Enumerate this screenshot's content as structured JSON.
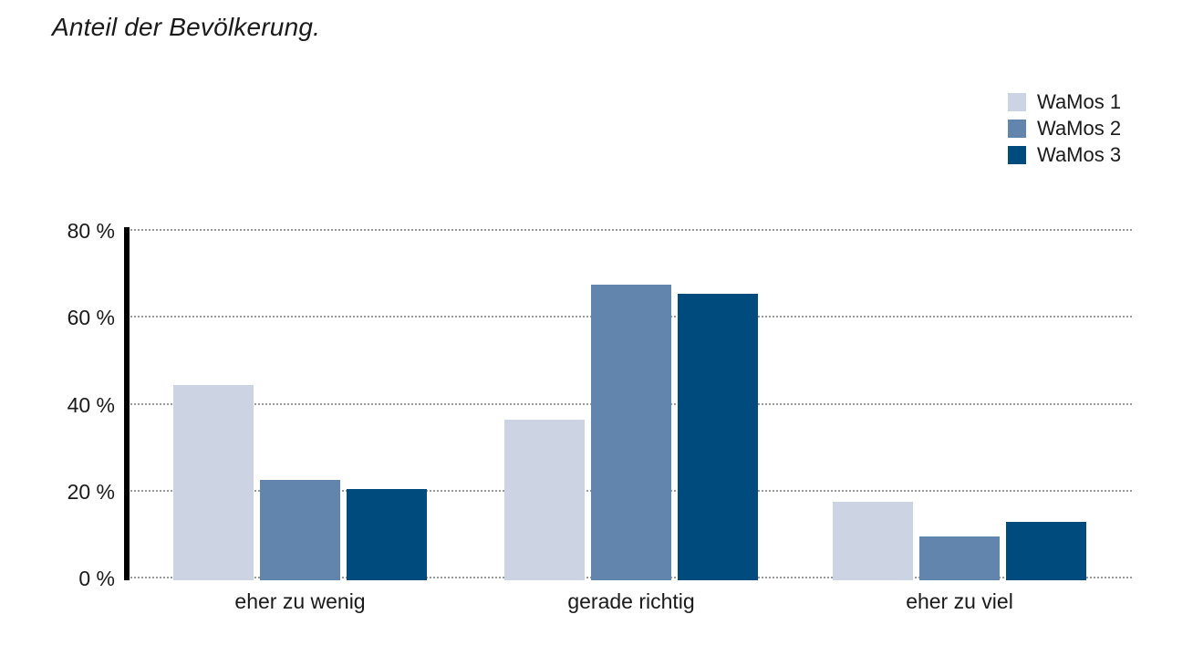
{
  "title": "Anteil der Bevölkerung.",
  "chart_data": {
    "type": "bar",
    "categories": [
      "eher zu wenig",
      "gerade richtig",
      "eher zu viel"
    ],
    "series": [
      {
        "name": "WaMos 1",
        "color": "#ccd4e4",
        "values": [
          45,
          37,
          18
        ]
      },
      {
        "name": "WaMos 2",
        "color": "#6285ae",
        "values": [
          23,
          68,
          10
        ]
      },
      {
        "name": "WaMos 3",
        "color": "#004b7d",
        "values": [
          21,
          66,
          13.5
        ]
      }
    ],
    "yticks": [
      0,
      20,
      40,
      60,
      80
    ],
    "ylim": [
      0,
      80
    ],
    "tick_suffix": " %",
    "grid": "horizontal dotted",
    "gridline_color": "#9a9a9a",
    "axis_color": "#000000",
    "legend_position": "top-right",
    "background_color": "#ffffff",
    "text_color": "#1a1a1a"
  }
}
